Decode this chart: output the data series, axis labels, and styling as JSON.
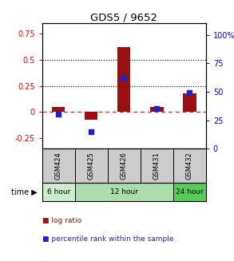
{
  "title": "GDS5 / 9652",
  "samples": [
    "GSM424",
    "GSM425",
    "GSM426",
    "GSM431",
    "GSM432"
  ],
  "log_ratio": [
    0.05,
    -0.07,
    0.62,
    0.05,
    0.18
  ],
  "percentile_rank_pct": [
    30,
    15,
    62,
    35,
    49
  ],
  "bar_color": "#991111",
  "dot_color": "#2222cc",
  "ylim_left": [
    -0.35,
    0.85
  ],
  "ylim_right": [
    0,
    110
  ],
  "yticks_left": [
    -0.25,
    0.0,
    0.25,
    0.5,
    0.75
  ],
  "ytick_labels_left": [
    "-0.25",
    "0",
    "0.25",
    "0.5",
    "0.75"
  ],
  "yticks_right": [
    0,
    25,
    50,
    75,
    100
  ],
  "ytick_labels_right": [
    "0",
    "25",
    "50",
    "75",
    "100%"
  ],
  "hline_zero_color": "#cc3333",
  "hline_zero_style": "--",
  "hline_25_color": "black",
  "hline_25_style": ":",
  "hline_50_color": "black",
  "hline_50_style": ":",
  "background_color": "#ffffff",
  "bar_width": 0.4,
  "group_defs": [
    {
      "start": 0,
      "end": 0,
      "label": "6 hour",
      "color": "#cceecc"
    },
    {
      "start": 1,
      "end": 3,
      "label": "12 hour",
      "color": "#aaddaa"
    },
    {
      "start": 4,
      "end": 4,
      "label": "24 hour",
      "color": "#55cc55"
    }
  ],
  "legend_items": [
    "log ratio",
    "percentile rank within the sample"
  ],
  "legend_colors": [
    "#991111",
    "#2222cc"
  ]
}
